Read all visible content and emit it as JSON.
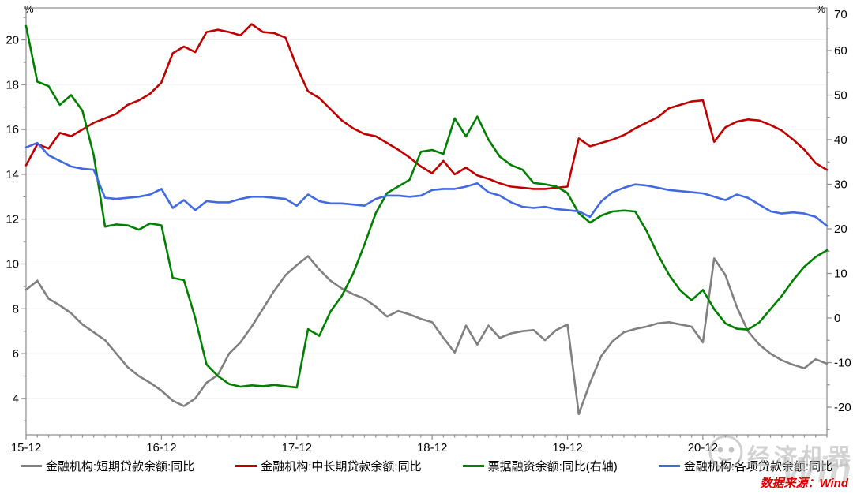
{
  "source_note": "数据来源：Wind",
  "watermark": {
    "brand": "经济机器",
    "wind": "Wind"
  },
  "legend_labels": [
    "金融机构:短期贷款余额:同比",
    "金融机构:中长期贷款余额:同比",
    "票据融资余额:同比(右轴)",
    "金融机构:各项贷款余额:同比"
  ],
  "chart_data": {
    "type": "line",
    "title": "",
    "x_frequency": "monthly",
    "x_start": "2015-12",
    "x_end": "2021-11",
    "x_tick_labels": [
      "15-12",
      "16-12",
      "17-12",
      "18-12",
      "19-12",
      "20-12"
    ],
    "x_tick_indices": [
      0,
      12,
      24,
      36,
      48,
      60
    ],
    "grid": "horizontal-light",
    "legend_position": "bottom",
    "left_axis": {
      "unit": "%",
      "ticks": [
        4,
        6,
        8,
        10,
        12,
        14,
        16,
        18,
        20
      ],
      "minor_step": 1
    },
    "right_axis": {
      "unit": "%",
      "ticks": [
        -20,
        -10,
        0,
        10,
        20,
        30,
        40,
        50,
        60,
        70
      ],
      "minor_step": 5
    },
    "series": [
      {
        "key": "short-term-loans",
        "name": "金融机构:短期贷款余额:同比",
        "color": "#808080",
        "axis": "left",
        "values": [
          8.85,
          9.25,
          8.45,
          8.15,
          7.8,
          7.3,
          6.95,
          6.6,
          6.0,
          5.4,
          5.0,
          4.7,
          4.35,
          3.9,
          3.66,
          4.0,
          4.7,
          5.05,
          6.0,
          6.5,
          7.2,
          8.0,
          8.8,
          9.5,
          9.95,
          10.35,
          9.75,
          9.25,
          8.9,
          8.65,
          8.45,
          8.1,
          7.65,
          7.9,
          7.75,
          7.55,
          7.4,
          6.7,
          6.05,
          7.25,
          6.4,
          7.25,
          6.7,
          6.9,
          7.0,
          7.05,
          6.6,
          7.05,
          7.3,
          3.3,
          4.7,
          5.9,
          6.55,
          6.95,
          7.1,
          7.2,
          7.35,
          7.4,
          7.3,
          7.2,
          6.5,
          10.25,
          9.5,
          8.1,
          7.0,
          6.4,
          6.0,
          5.7,
          5.5,
          5.35,
          5.75,
          5.55
        ]
      },
      {
        "key": "medium-long-term-loans",
        "name": "金融机构:中长期贷款余额:同比",
        "color": "#c00000",
        "axis": "left",
        "values": [
          14.4,
          15.35,
          15.15,
          15.85,
          15.7,
          16.0,
          16.3,
          16.5,
          16.7,
          17.1,
          17.3,
          17.6,
          18.1,
          19.4,
          19.7,
          19.45,
          20.35,
          20.45,
          20.35,
          20.2,
          20.7,
          20.35,
          20.3,
          20.1,
          18.8,
          17.7,
          17.4,
          16.9,
          16.4,
          16.05,
          15.8,
          15.7,
          15.4,
          15.1,
          14.75,
          14.35,
          14.05,
          14.6,
          14.0,
          14.3,
          13.95,
          13.8,
          13.6,
          13.45,
          13.4,
          13.35,
          13.35,
          13.4,
          13.45,
          15.6,
          15.25,
          15.4,
          15.55,
          15.75,
          16.05,
          16.3,
          16.55,
          16.95,
          17.1,
          17.25,
          17.3,
          15.45,
          16.1,
          16.35,
          16.45,
          16.4,
          16.2,
          15.95,
          15.55,
          15.1,
          14.5,
          14.2
        ]
      },
      {
        "key": "bill-financing",
        "name": "票据融资余额:同比(右轴)",
        "color": "#008000",
        "axis": "right",
        "values": [
          65.5,
          53.0,
          52.0,
          47.8,
          50.0,
          46.5,
          36.5,
          20.5,
          21.0,
          20.8,
          19.8,
          21.2,
          20.8,
          9.0,
          8.5,
          0.0,
          -10.4,
          -13.0,
          -14.8,
          -15.4,
          -15.1,
          -15.3,
          -15.0,
          -15.3,
          -15.6,
          -2.5,
          -4.0,
          1.5,
          5.0,
          10.0,
          16.5,
          23.5,
          28.0,
          29.5,
          31.0,
          37.3,
          37.7,
          36.8,
          44.8,
          40.7,
          45.2,
          40.0,
          36.2,
          34.3,
          33.3,
          30.3,
          30.0,
          29.5,
          28.0,
          23.5,
          21.4,
          23.0,
          23.9,
          24.1,
          23.9,
          19.6,
          14.3,
          9.7,
          6.2,
          4.0,
          6.3,
          2.0,
          -1.2,
          -2.4,
          -2.6,
          -1.0,
          2.0,
          5.0,
          8.5,
          11.5,
          13.7,
          15.2
        ]
      },
      {
        "key": "all-loans",
        "name": "金融机构:各项贷款余额:同比",
        "color": "#4169e1",
        "axis": "left",
        "values": [
          15.2,
          15.4,
          14.85,
          14.6,
          14.35,
          14.25,
          14.2,
          12.95,
          12.9,
          12.95,
          13.0,
          13.1,
          13.35,
          12.5,
          12.85,
          12.4,
          12.8,
          12.75,
          12.75,
          12.9,
          13.0,
          13.0,
          12.95,
          12.9,
          12.6,
          13.1,
          12.8,
          12.7,
          12.7,
          12.65,
          12.6,
          12.9,
          13.05,
          13.05,
          13.0,
          13.05,
          13.3,
          13.35,
          13.35,
          13.45,
          13.6,
          13.2,
          13.05,
          12.75,
          12.55,
          12.5,
          12.55,
          12.45,
          12.4,
          12.35,
          12.1,
          12.8,
          13.2,
          13.4,
          13.55,
          13.5,
          13.4,
          13.3,
          13.25,
          13.2,
          13.15,
          13.0,
          12.85,
          13.1,
          12.95,
          12.65,
          12.35,
          12.25,
          12.3,
          12.25,
          12.1,
          11.7
        ]
      }
    ]
  }
}
